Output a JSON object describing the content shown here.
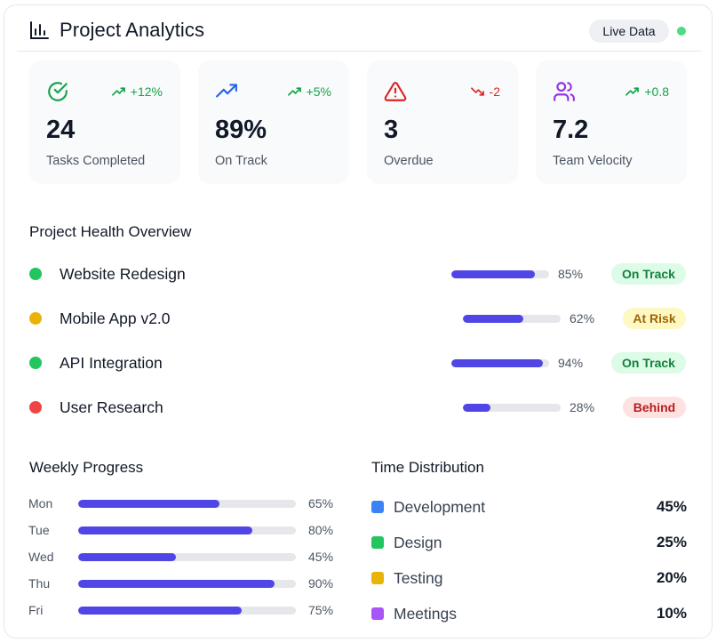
{
  "header": {
    "title": "Project Analytics",
    "live_label": "Live Data"
  },
  "stats": [
    {
      "icon": "check-circle-icon",
      "delta": "+12%",
      "trend": "up",
      "value": "24",
      "label": "Tasks Completed",
      "color": "#16a34a"
    },
    {
      "icon": "trending-up-icon",
      "delta": "+5%",
      "trend": "up",
      "value": "89%",
      "label": "On Track",
      "color": "#2563eb"
    },
    {
      "icon": "alert-triangle-icon",
      "delta": "-2",
      "trend": "down",
      "value": "3",
      "label": "Overdue",
      "color": "#dc2626"
    },
    {
      "icon": "users-icon",
      "delta": "+0.8",
      "trend": "up",
      "value": "7.2",
      "label": "Team Velocity",
      "color": "#9333ea"
    }
  ],
  "health": {
    "title": "Project Health Overview",
    "projects": [
      {
        "name": "Website Redesign",
        "progress": 85,
        "pct": "85%",
        "status": "On Track",
        "dot": "#22c55e"
      },
      {
        "name": "Mobile App v2.0",
        "progress": 62,
        "pct": "62%",
        "status": "At Risk",
        "dot": "#eab308"
      },
      {
        "name": "API Integration",
        "progress": 94,
        "pct": "94%",
        "status": "On Track",
        "dot": "#22c55e"
      },
      {
        "name": "User Research",
        "progress": 28,
        "pct": "28%",
        "status": "Behind",
        "dot": "#ef4444"
      }
    ]
  },
  "weekly": {
    "title": "Weekly Progress",
    "days": [
      {
        "day": "Mon",
        "value": 65,
        "pct": "65%"
      },
      {
        "day": "Tue",
        "value": 80,
        "pct": "80%"
      },
      {
        "day": "Wed",
        "value": 45,
        "pct": "45%"
      },
      {
        "day": "Thu",
        "value": 90,
        "pct": "90%"
      },
      {
        "day": "Fri",
        "value": 75,
        "pct": "75%"
      }
    ]
  },
  "time": {
    "title": "Time Distribution",
    "items": [
      {
        "name": "Development",
        "pct": "45%",
        "color": "#3b82f6"
      },
      {
        "name": "Design",
        "pct": "25%",
        "color": "#22c55e"
      },
      {
        "name": "Testing",
        "pct": "20%",
        "color": "#eab308"
      },
      {
        "name": "Meetings",
        "pct": "10%",
        "color": "#a855f7"
      }
    ]
  }
}
